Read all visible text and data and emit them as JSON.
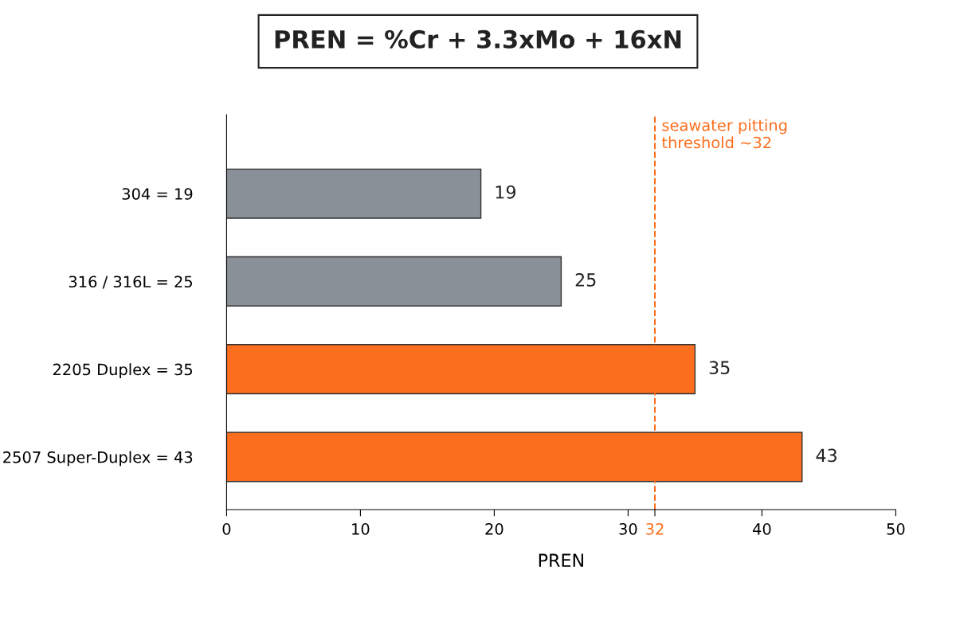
{
  "chart_data": {
    "type": "bar",
    "orientation": "horizontal",
    "title": "PREN = %Cr + 3.3xMo + 16xN",
    "xlabel": "PREN",
    "categories": [
      "304 = 19",
      "316 / 316L = 25",
      "2205 Duplex = 35",
      "2507 Super-Duplex = 43"
    ],
    "values": [
      19,
      25,
      35,
      43
    ],
    "colors": [
      "#8a9097",
      "#8a9097",
      "#fb6e1d",
      "#fb6e1d"
    ],
    "data_labels": true,
    "xlim": [
      0,
      50
    ],
    "xticks": [
      0,
      10,
      20,
      30,
      32,
      40,
      50
    ],
    "ref_lines": [
      {
        "axis": "x",
        "value": 32,
        "label": "seawater pitting\nthreshold ~32",
        "color": "#fb6e1d",
        "line_style": "dashed"
      }
    ],
    "grid": false,
    "legend": false
  }
}
